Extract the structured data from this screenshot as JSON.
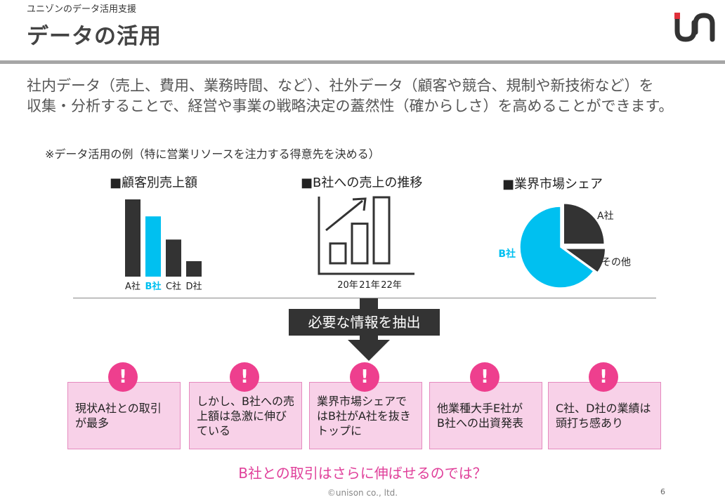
{
  "header": {
    "subtitle": "ユニゾンのデータ活用支援",
    "title": "データの活用"
  },
  "intro": {
    "line1": "社内データ（売上、費用、業務時間、など）、社外データ（顧客や競合、規制や新技術など）を",
    "line2": "収集・分析することで、経営や事業の戦略決定の蓋然性（確からしさ）を高めることができます。"
  },
  "example_label": "※データ活用の例（特に営業リソースを注力する得意先を決める）",
  "chart_data": [
    {
      "type": "bar",
      "title": "■顧客別売上額",
      "categories": [
        "A社",
        "B社",
        "C社",
        "D社"
      ],
      "values": [
        100,
        78,
        48,
        20
      ],
      "highlight": "B社",
      "colors": {
        "default": "#333333",
        "highlight": "#00c0f0"
      }
    },
    {
      "type": "bar",
      "title": "■B社への売上の推移",
      "categories": [
        "20年",
        "21年",
        "22年"
      ],
      "values": [
        30,
        60,
        100
      ],
      "trend_arrow": true
    },
    {
      "type": "pie",
      "title": "■業界市場シェア",
      "slices": [
        {
          "label": "A社",
          "value": 25,
          "color": "#333333"
        },
        {
          "label": "その他",
          "value": 10,
          "color": "#333333"
        },
        {
          "label": "B社",
          "value": 65,
          "color": "#00c0f0"
        }
      ]
    }
  ],
  "extract_label": "必要な情報を抽出",
  "findings": [
    {
      "text": "現状A社との取引が最多",
      "lines": [
        "現状A社との取引",
        "が最多"
      ]
    },
    {
      "text": "しかし、B社への売上額は急激に伸びている",
      "lines": [
        "しかし、B社への売",
        "上額は急激に伸び",
        "ている"
      ]
    },
    {
      "text": "業界市場シェアではB社がA社を抜きトップに",
      "lines": [
        "業界市場シェアで",
        "はB社がA社を抜き",
        "トップに"
      ]
    },
    {
      "text": "他業種大手E社がB社への出資発表",
      "lines": [
        "他業種大手E社が",
        "B社への出資発表"
      ]
    },
    {
      "text": "C社、D社の業績は頭打ち感あり",
      "lines": [
        "C社、D社の業績は",
        "頭打ち感あり"
      ]
    }
  ],
  "finding_mark": "!",
  "conclusion": "B社との取引はさらに伸ばせるのでは？",
  "footer": {
    "copyright": "©unison co., ltd.",
    "page": "6"
  }
}
